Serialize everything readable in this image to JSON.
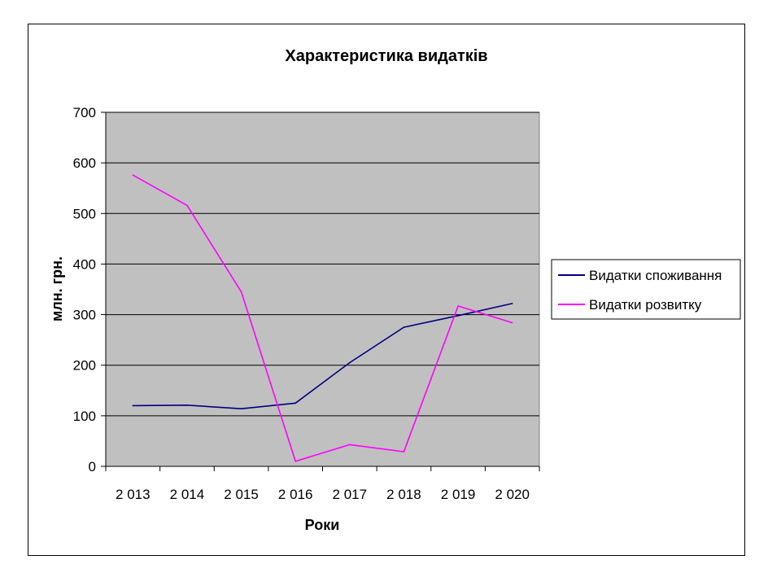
{
  "chart_data": {
    "type": "line",
    "title": "Характеристика видатків",
    "xlabel": "Роки",
    "ylabel": "млн. грн.",
    "categories": [
      "2 013",
      "2 014",
      "2 015",
      "2 016",
      "2 017",
      "2 018",
      "2 019",
      "2 020"
    ],
    "y_ticks": [
      "0",
      "100",
      "200",
      "300",
      "400",
      "500",
      "600",
      "700"
    ],
    "ylim": [
      0,
      700
    ],
    "grid": true,
    "legend_position": "right",
    "plot_background": "#c0c0c0",
    "series": [
      {
        "name": "Видатки споживання",
        "color": "#000080",
        "values": [
          120,
          121,
          114,
          125,
          205,
          275,
          298,
          322
        ]
      },
      {
        "name": "Видатки розвитку",
        "color": "#ff00ff",
        "values": [
          576,
          516,
          345,
          10,
          43,
          29,
          317,
          284
        ]
      }
    ]
  }
}
